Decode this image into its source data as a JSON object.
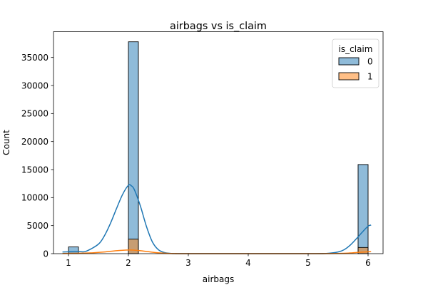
{
  "chart_data": {
    "type": "bar",
    "title": "airbags vs is_claim",
    "xlabel": "airbags",
    "ylabel": "Count",
    "xlim": [
      0.75,
      6.25
    ],
    "ylim": [
      0,
      39600
    ],
    "x_ticks": [
      1,
      2,
      3,
      4,
      5,
      6
    ],
    "y_ticks": [
      0,
      5000,
      10000,
      15000,
      20000,
      25000,
      30000,
      35000
    ],
    "grid": false,
    "legend": {
      "title": "is_claim",
      "placement": "top-right"
    },
    "bin_width": 0.1667,
    "series": [
      {
        "name": "0",
        "color": "#1f77b4",
        "bins": [
          {
            "x0": 1.0,
            "x1": 1.1667,
            "count": 1200
          },
          {
            "x0": 2.0,
            "x1": 2.1667,
            "count": 37800
          },
          {
            "x0": 5.8333,
            "x1": 6.0,
            "count": 15900
          }
        ],
        "kde": [
          [
            0.9,
            300
          ],
          [
            1.0,
            330
          ],
          [
            1.1,
            400
          ],
          [
            1.2,
            350
          ],
          [
            1.3,
            450
          ],
          [
            1.5,
            1700
          ],
          [
            1.6,
            3200
          ],
          [
            1.7,
            5400
          ],
          [
            1.8,
            8000
          ],
          [
            1.9,
            10500
          ],
          [
            2.0,
            12200
          ],
          [
            2.05,
            12100
          ],
          [
            2.1,
            11400
          ],
          [
            2.2,
            8500
          ],
          [
            2.3,
            4900
          ],
          [
            2.4,
            2100
          ],
          [
            2.5,
            700
          ],
          [
            2.6,
            200
          ],
          [
            2.7,
            50
          ],
          [
            3.0,
            0
          ],
          [
            5.0,
            0
          ],
          [
            5.3,
            40
          ],
          [
            5.5,
            300
          ],
          [
            5.6,
            700
          ],
          [
            5.7,
            1500
          ],
          [
            5.8,
            2600
          ],
          [
            5.9,
            3800
          ],
          [
            6.0,
            4900
          ],
          [
            6.05,
            5100
          ]
        ]
      },
      {
        "name": "1",
        "color": "#ff7f0e",
        "bins": [
          {
            "x0": 1.0,
            "x1": 1.1667,
            "count": 90
          },
          {
            "x0": 2.0,
            "x1": 2.1667,
            "count": 2600
          },
          {
            "x0": 5.8333,
            "x1": 6.0,
            "count": 1100
          }
        ],
        "kde": [
          [
            0.9,
            40
          ],
          [
            1.0,
            50
          ],
          [
            1.2,
            80
          ],
          [
            1.4,
            150
          ],
          [
            1.6,
            300
          ],
          [
            1.8,
            520
          ],
          [
            2.0,
            650
          ],
          [
            2.1,
            620
          ],
          [
            2.2,
            520
          ],
          [
            2.4,
            260
          ],
          [
            2.6,
            80
          ],
          [
            2.8,
            10
          ],
          [
            3.0,
            0
          ],
          [
            5.0,
            0
          ],
          [
            5.5,
            40
          ],
          [
            5.7,
            120
          ],
          [
            5.85,
            240
          ],
          [
            6.0,
            330
          ],
          [
            6.05,
            350
          ]
        ]
      }
    ]
  }
}
